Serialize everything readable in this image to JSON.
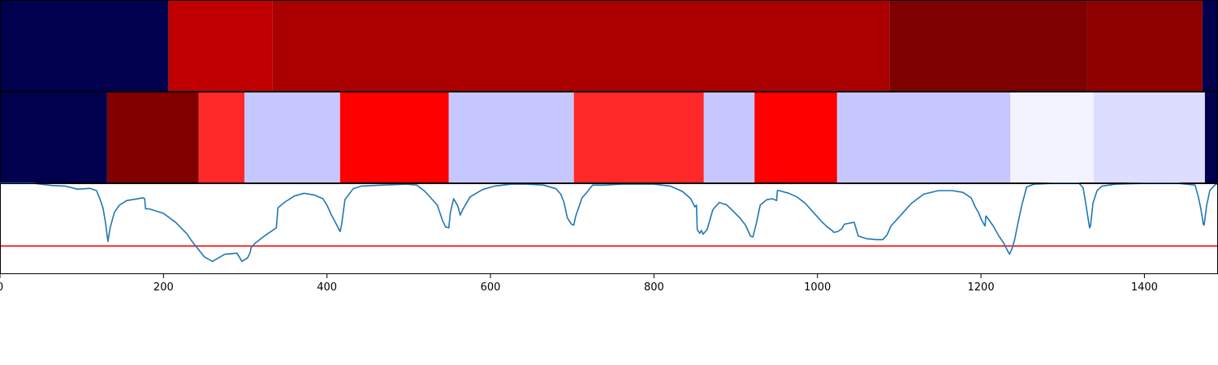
{
  "chart_data": [
    {
      "type": "heatmap",
      "x_range": [
        0,
        1490
      ],
      "segments": [
        {
          "x0": 0,
          "x1": 206,
          "color": "#00004f"
        },
        {
          "x0": 206,
          "x1": 333,
          "color": "#c00000"
        },
        {
          "x0": 333,
          "x1": 1088,
          "color": "#aa0000"
        },
        {
          "x0": 1088,
          "x1": 1330,
          "color": "#7e0000"
        },
        {
          "x0": 1330,
          "x1": 1471,
          "color": "#8e0000"
        },
        {
          "x0": 1471,
          "x1": 1490,
          "color": "#00004f"
        }
      ]
    },
    {
      "type": "heatmap",
      "x_range": [
        0,
        1490
      ],
      "segments": [
        {
          "x0": 0,
          "x1": 131,
          "color": "#00004f"
        },
        {
          "x0": 131,
          "x1": 243,
          "color": "#800000"
        },
        {
          "x0": 243,
          "x1": 299,
          "color": "#ff2828"
        },
        {
          "x0": 299,
          "x1": 416,
          "color": "#c7c7ff"
        },
        {
          "x0": 416,
          "x1": 549,
          "color": "#fe0000"
        },
        {
          "x0": 549,
          "x1": 702,
          "color": "#c7c7ff"
        },
        {
          "x0": 702,
          "x1": 861,
          "color": "#ff2828"
        },
        {
          "x0": 861,
          "x1": 923,
          "color": "#c7c7ff"
        },
        {
          "x0": 923,
          "x1": 1024,
          "color": "#fe0000"
        },
        {
          "x0": 1024,
          "x1": 1236,
          "color": "#c7c7ff"
        },
        {
          "x0": 1236,
          "x1": 1338,
          "color": "#f3f3ff"
        },
        {
          "x0": 1338,
          "x1": 1474,
          "color": "#ddddff"
        },
        {
          "x0": 1474,
          "x1": 1490,
          "color": "#00004f"
        }
      ]
    },
    {
      "type": "line",
      "xlim": [
        0,
        1490
      ],
      "ylim": [
        0,
        1
      ],
      "x_ticks": [
        0,
        200,
        400,
        600,
        800,
        1000,
        1200,
        1400
      ],
      "line_color": "#1f77b4",
      "threshold": 0.31,
      "threshold_color": "#ff0000",
      "x": [
        0,
        40,
        65,
        80,
        95,
        110,
        118,
        122,
        126,
        129,
        131,
        132,
        135,
        140,
        146,
        155,
        175,
        177,
        178,
        182,
        200,
        215,
        228,
        235,
        242,
        250,
        260,
        275,
        290,
        296,
        303,
        306,
        307,
        312,
        325,
        338,
        340,
        348,
        360,
        372,
        385,
        395,
        400,
        405,
        412,
        416,
        418,
        422,
        432,
        442,
        468,
        498,
        510,
        520,
        528,
        535,
        541,
        545,
        549,
        551,
        555,
        560,
        563,
        566,
        575,
        590,
        605,
        625,
        645,
        665,
        680,
        686,
        690,
        694,
        699,
        702,
        704,
        712,
        718,
        723,
        725,
        740,
        760,
        780,
        800,
        820,
        835,
        845,
        850,
        852,
        853,
        856,
        858,
        860,
        862,
        865,
        872,
        880,
        886,
        888,
        895,
        905,
        912,
        918,
        921,
        925,
        930,
        938,
        945,
        950,
        951,
        953,
        965,
        975,
        985,
        995,
        1005,
        1012,
        1018,
        1020,
        1025,
        1030,
        1033,
        1044,
        1045,
        1050,
        1060,
        1072,
        1080,
        1085,
        1090,
        1102,
        1115,
        1130,
        1148,
        1165,
        1178,
        1188,
        1193,
        1197,
        1200,
        1203,
        1205,
        1206,
        1208,
        1215,
        1222,
        1228,
        1233,
        1235,
        1238,
        1241,
        1245,
        1250,
        1256,
        1265,
        1290,
        1320,
        1325,
        1328,
        1331,
        1333,
        1334,
        1337,
        1342,
        1348,
        1365,
        1400,
        1440,
        1462,
        1466,
        1469,
        1472,
        1473,
        1476,
        1480,
        1486,
        1490
      ],
      "y": [
        1.0,
        1.0,
        0.975,
        0.97,
        0.935,
        0.945,
        0.92,
        0.835,
        0.73,
        0.57,
        0.43,
        0.36,
        0.52,
        0.68,
        0.76,
        0.81,
        0.84,
        0.83,
        0.72,
        0.72,
        0.67,
        0.57,
        0.45,
        0.36,
        0.28,
        0.19,
        0.14,
        0.22,
        0.23,
        0.14,
        0.18,
        0.24,
        0.29,
        0.34,
        0.43,
        0.51,
        0.73,
        0.79,
        0.86,
        0.89,
        0.87,
        0.83,
        0.76,
        0.66,
        0.54,
        0.47,
        0.55,
        0.82,
        0.94,
        0.97,
        0.98,
        0.99,
        0.98,
        0.91,
        0.83,
        0.76,
        0.6,
        0.52,
        0.51,
        0.68,
        0.83,
        0.75,
        0.65,
        0.71,
        0.85,
        0.93,
        0.97,
        0.99,
        0.99,
        0.98,
        0.94,
        0.88,
        0.79,
        0.62,
        0.55,
        0.54,
        0.63,
        0.84,
        0.9,
        0.96,
        0.98,
        0.98,
        0.99,
        0.99,
        0.99,
        0.97,
        0.91,
        0.83,
        0.74,
        0.76,
        0.49,
        0.45,
        0.48,
        0.44,
        0.46,
        0.49,
        0.71,
        0.79,
        0.77,
        0.77,
        0.71,
        0.62,
        0.54,
        0.42,
        0.41,
        0.55,
        0.76,
        0.82,
        0.83,
        0.81,
        0.92,
        0.92,
        0.89,
        0.85,
        0.78,
        0.68,
        0.58,
        0.52,
        0.48,
        0.46,
        0.47,
        0.5,
        0.55,
        0.57,
        0.57,
        0.42,
        0.39,
        0.38,
        0.38,
        0.43,
        0.53,
        0.65,
        0.78,
        0.88,
        0.92,
        0.92,
        0.9,
        0.84,
        0.74,
        0.68,
        0.61,
        0.56,
        0.53,
        0.64,
        0.62,
        0.53,
        0.42,
        0.34,
        0.25,
        0.22,
        0.28,
        0.37,
        0.55,
        0.76,
        0.96,
        0.99,
        1.0,
        1.0,
        0.95,
        0.79,
        0.62,
        0.51,
        0.53,
        0.78,
        0.92,
        0.97,
        0.99,
        1.0,
        1.0,
        0.98,
        0.85,
        0.72,
        0.55,
        0.54,
        0.75,
        0.92,
        0.98,
        1.0
      ]
    }
  ]
}
